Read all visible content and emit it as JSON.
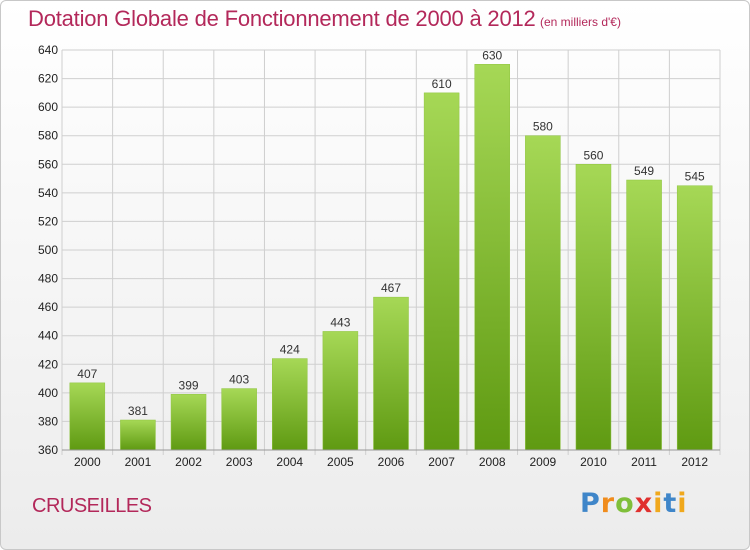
{
  "header": {
    "title": "Dotation Globale de Fonctionnement de 2000 à 2012",
    "unit": "(en milliers d'€)"
  },
  "footer": {
    "commune": "CRUSEILLES",
    "logo": "Proxiti"
  },
  "colors": {
    "accent": "#b3285a",
    "bar_top": "#a6d856",
    "bar_bottom": "#5f9a12",
    "grid": "#cfcfcf"
  },
  "chart_data": {
    "type": "bar",
    "title": "Dotation Globale de Fonctionnement de 2000 à 2012",
    "subtitle": "(en milliers d'€)",
    "xlabel": "",
    "ylabel": "",
    "categories": [
      "2000",
      "2001",
      "2002",
      "2003",
      "2004",
      "2005",
      "2006",
      "2007",
      "2008",
      "2009",
      "2010",
      "2011",
      "2012"
    ],
    "values": [
      407,
      381,
      399,
      403,
      424,
      443,
      467,
      610,
      630,
      580,
      560,
      549,
      545
    ],
    "ylim": [
      360,
      640
    ],
    "yticks": [
      360,
      380,
      400,
      420,
      440,
      460,
      480,
      500,
      520,
      540,
      560,
      580,
      600,
      620,
      640
    ],
    "grid": true,
    "legend": "none"
  }
}
